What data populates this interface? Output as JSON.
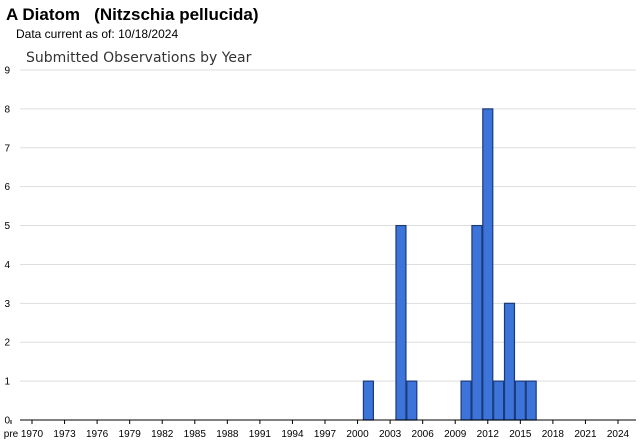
{
  "header": {
    "common_name": "A Diatom",
    "scientific_name": "(Nitzschia pellucida)",
    "data_current_label": "Data current as of:",
    "data_current_date": "10/18/2024"
  },
  "chart_data": {
    "type": "bar",
    "title": "Submitted Observations by Year",
    "xlabel": "",
    "ylabel": "",
    "ylim": [
      0,
      9
    ],
    "yticks": [
      0,
      1,
      2,
      3,
      4,
      5,
      6,
      7,
      8,
      9
    ],
    "grid": true,
    "bar_color": "#3d74d9",
    "bar_edge_color": "#1b3a7a",
    "x_tick_labels": [
      "pre",
      "1970",
      "1973",
      "1976",
      "1979",
      "1982",
      "1985",
      "1988",
      "1991",
      "1994",
      "1997",
      "2000",
      "2003",
      "2006",
      "2009",
      "2012",
      "2015",
      "2018",
      "2021",
      "2024"
    ],
    "categories": [
      "pre",
      "1970",
      "1971",
      "1972",
      "1973",
      "1974",
      "1975",
      "1976",
      "1977",
      "1978",
      "1979",
      "1980",
      "1981",
      "1982",
      "1983",
      "1984",
      "1985",
      "1986",
      "1987",
      "1988",
      "1989",
      "1990",
      "1991",
      "1992",
      "1993",
      "1994",
      "1995",
      "1996",
      "1997",
      "1998",
      "1999",
      "2000",
      "2001",
      "2002",
      "2003",
      "2004",
      "2005",
      "2006",
      "2007",
      "2008",
      "2009",
      "2010",
      "2011",
      "2012",
      "2013",
      "2014",
      "2015",
      "2016",
      "2017",
      "2018",
      "2019",
      "2020",
      "2021",
      "2022",
      "2023",
      "2024"
    ],
    "values": [
      0,
      0,
      0,
      0,
      0,
      0,
      0,
      0,
      0,
      0,
      0,
      0,
      0,
      0,
      0,
      0,
      0,
      0,
      0,
      0,
      0,
      0,
      0,
      0,
      0,
      0,
      0,
      0,
      0,
      0,
      0,
      0,
      1,
      0,
      0,
      5,
      1,
      0,
      0,
      0,
      0,
      1,
      5,
      8,
      1,
      3,
      1,
      1,
      0,
      0,
      0,
      0,
      0,
      0,
      0,
      0
    ]
  }
}
